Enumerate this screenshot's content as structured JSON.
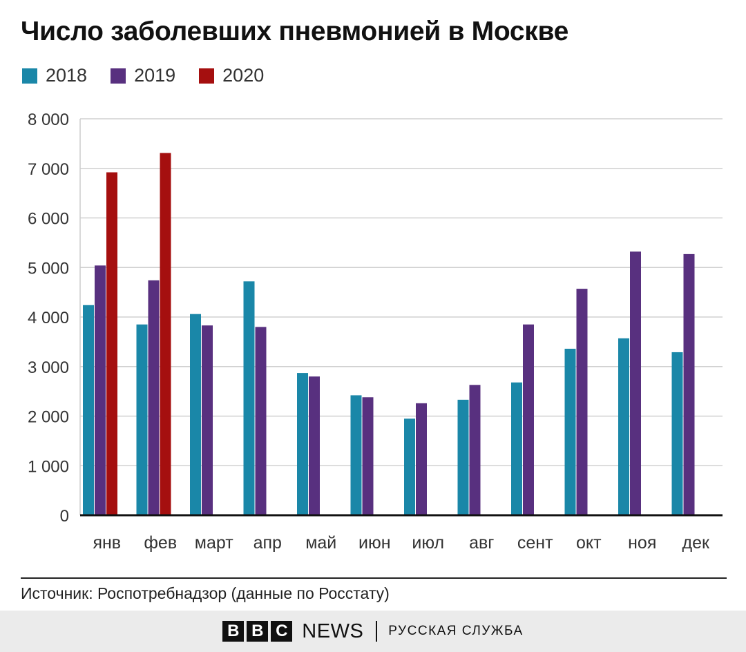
{
  "title": "Число заболевших пневмонией в Москве",
  "source": "Источник: Роспотребнадзор (данные по Росстату)",
  "footer": {
    "brand_letters": [
      "B",
      "B",
      "C"
    ],
    "brand_news": "NEWS",
    "service": "РУССКАЯ СЛУЖБА"
  },
  "chart_data": {
    "type": "bar",
    "title": "Число заболевших пневмонией в Москве",
    "xlabel": "",
    "ylabel": "",
    "categories": [
      "янв",
      "фев",
      "март",
      "апр",
      "май",
      "июн",
      "июл",
      "авг",
      "сент",
      "окт",
      "ноя",
      "дек"
    ],
    "series": [
      {
        "name": "2018",
        "color": "#1a87a8",
        "values": [
          4240,
          3850,
          4060,
          4720,
          2870,
          2420,
          1950,
          2330,
          2680,
          3360,
          3570,
          3290
        ]
      },
      {
        "name": "2019",
        "color": "#58307f",
        "values": [
          5040,
          4740,
          3830,
          3800,
          2800,
          2380,
          2260,
          2630,
          3850,
          4570,
          5320,
          5270
        ]
      },
      {
        "name": "2020",
        "color": "#a50f0f",
        "values": [
          6920,
          7310,
          null,
          null,
          null,
          null,
          null,
          null,
          null,
          null,
          null,
          null
        ]
      }
    ],
    "ylim": [
      0,
      8000
    ],
    "yticks": [
      0,
      1000,
      2000,
      3000,
      4000,
      5000,
      6000,
      7000,
      8000
    ],
    "ytick_labels": [
      "0",
      "1 000",
      "2 000",
      "3 000",
      "4 000",
      "5 000",
      "6 000",
      "7 000",
      "8 000"
    ],
    "grid": true,
    "legend": "top-left"
  }
}
